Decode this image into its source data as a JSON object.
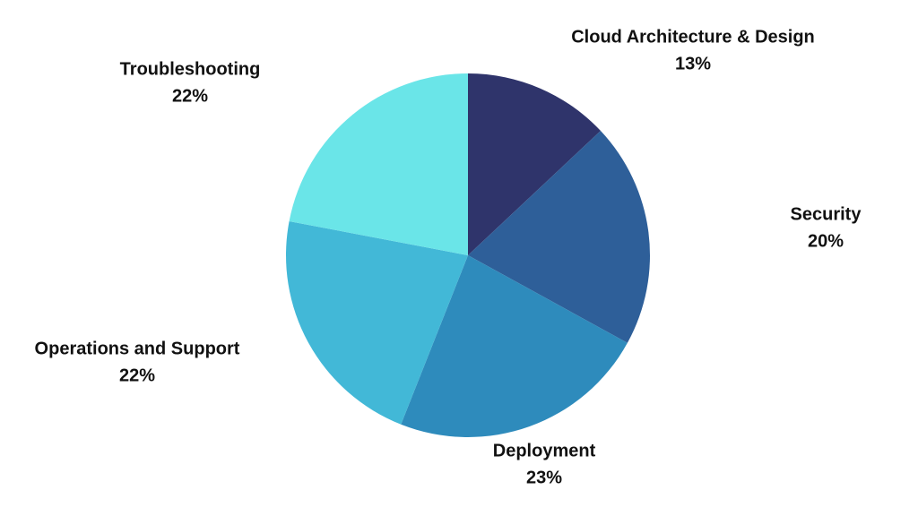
{
  "chart_data": {
    "type": "pie",
    "categories": [
      "Cloud Architecture & Design",
      "Security",
      "Deployment",
      "Operations and Support",
      "Troubleshooting"
    ],
    "values": [
      13,
      20,
      23,
      22,
      22
    ],
    "value_labels": [
      "13%",
      "20%",
      "23%",
      "22%",
      "22%"
    ],
    "colors": [
      "#2f346b",
      "#2e5f99",
      "#2e8bbc",
      "#42b8d7",
      "#6ae5e8"
    ]
  }
}
